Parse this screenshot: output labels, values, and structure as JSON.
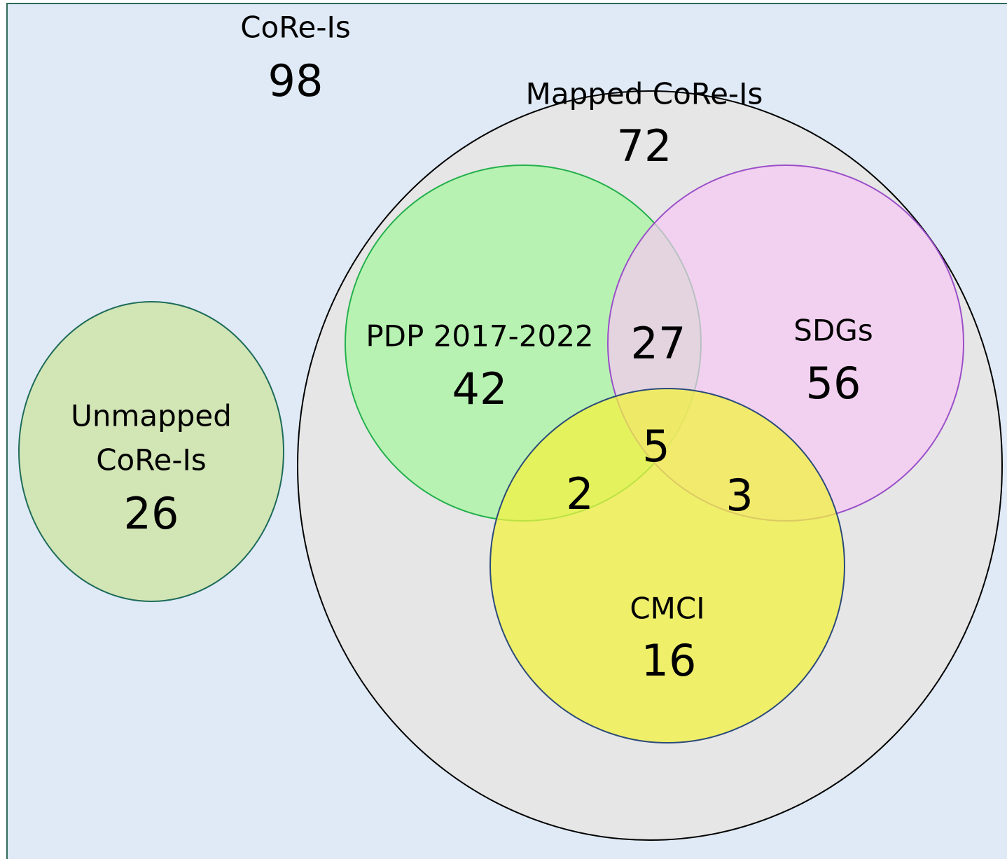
{
  "outer": {
    "label": "CoRe-Is",
    "count": 98
  },
  "unmapped": {
    "label_lines": [
      "Unmapped",
      "CoRe-Is"
    ],
    "count": 26
  },
  "mapped": {
    "label": "Mapped CoRe-Is",
    "count": 72
  },
  "sets": [
    {
      "label": "PDP 2017-2022",
      "count": 42
    },
    {
      "label": "SDGs",
      "count": 56
    },
    {
      "label": "CMCI",
      "count": 16
    }
  ],
  "overlaps": [
    27,
    5,
    2,
    3
  ]
}
